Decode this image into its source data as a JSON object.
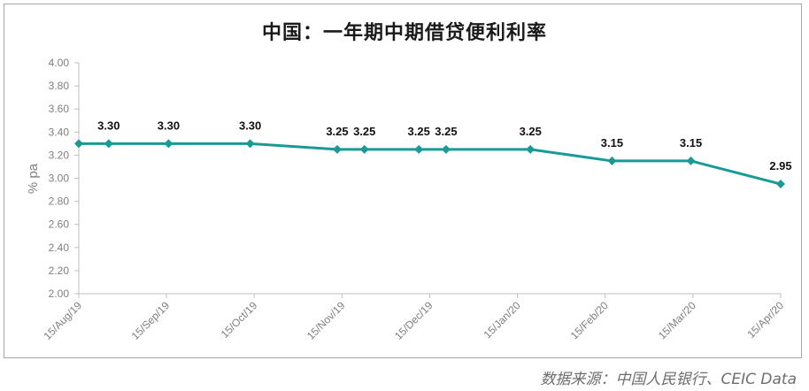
{
  "header": {
    "title": "中国：一年期中期借贷便利利率",
    "source": "数据来源：中国人民银行、CEIC Data"
  },
  "colors": {
    "series": "#1a9a96",
    "axis": "#bfbfbf",
    "text": "#7f7f7f"
  },
  "chart_data": {
    "type": "line",
    "title": "中国：一年期中期借贷便利利率",
    "ylabel": "% pa",
    "xlabel": "",
    "ylim": [
      2.0,
      4.0
    ],
    "y_step": 0.2,
    "grid": false,
    "legend": "none",
    "x_ticks": [
      "15/Aug/19",
      "15/Sep/19",
      "15/Oct/19",
      "15/Nov/19",
      "15/Dec/19",
      "15/Jan/20",
      "15/Feb/20",
      "15/Mar/20",
      "15/Apr/20"
    ],
    "y_ticks": [
      "2.00",
      "2.20",
      "2.40",
      "2.60",
      "2.80",
      "3.00",
      "3.20",
      "3.40",
      "3.60",
      "3.80",
      "4.00"
    ],
    "series": [
      {
        "x": [
          "2019-08-01",
          "2019-08-12",
          "2019-09-03",
          "2019-10-03",
          "2019-11-04",
          "2019-11-14",
          "2019-12-04",
          "2019-12-14",
          "2020-01-14",
          "2020-02-13",
          "2020-03-13",
          "2020-04-15"
        ],
        "values": [
          3.3,
          3.3,
          3.3,
          3.3,
          3.25,
          3.25,
          3.25,
          3.25,
          3.25,
          3.15,
          3.15,
          2.95
        ],
        "labels": [
          "",
          "3.30",
          "3.30",
          "3.30",
          "3.25",
          "3.25",
          "3.25",
          "3.25",
          "3.25",
          "3.15",
          "3.15",
          "2.95"
        ]
      }
    ]
  }
}
